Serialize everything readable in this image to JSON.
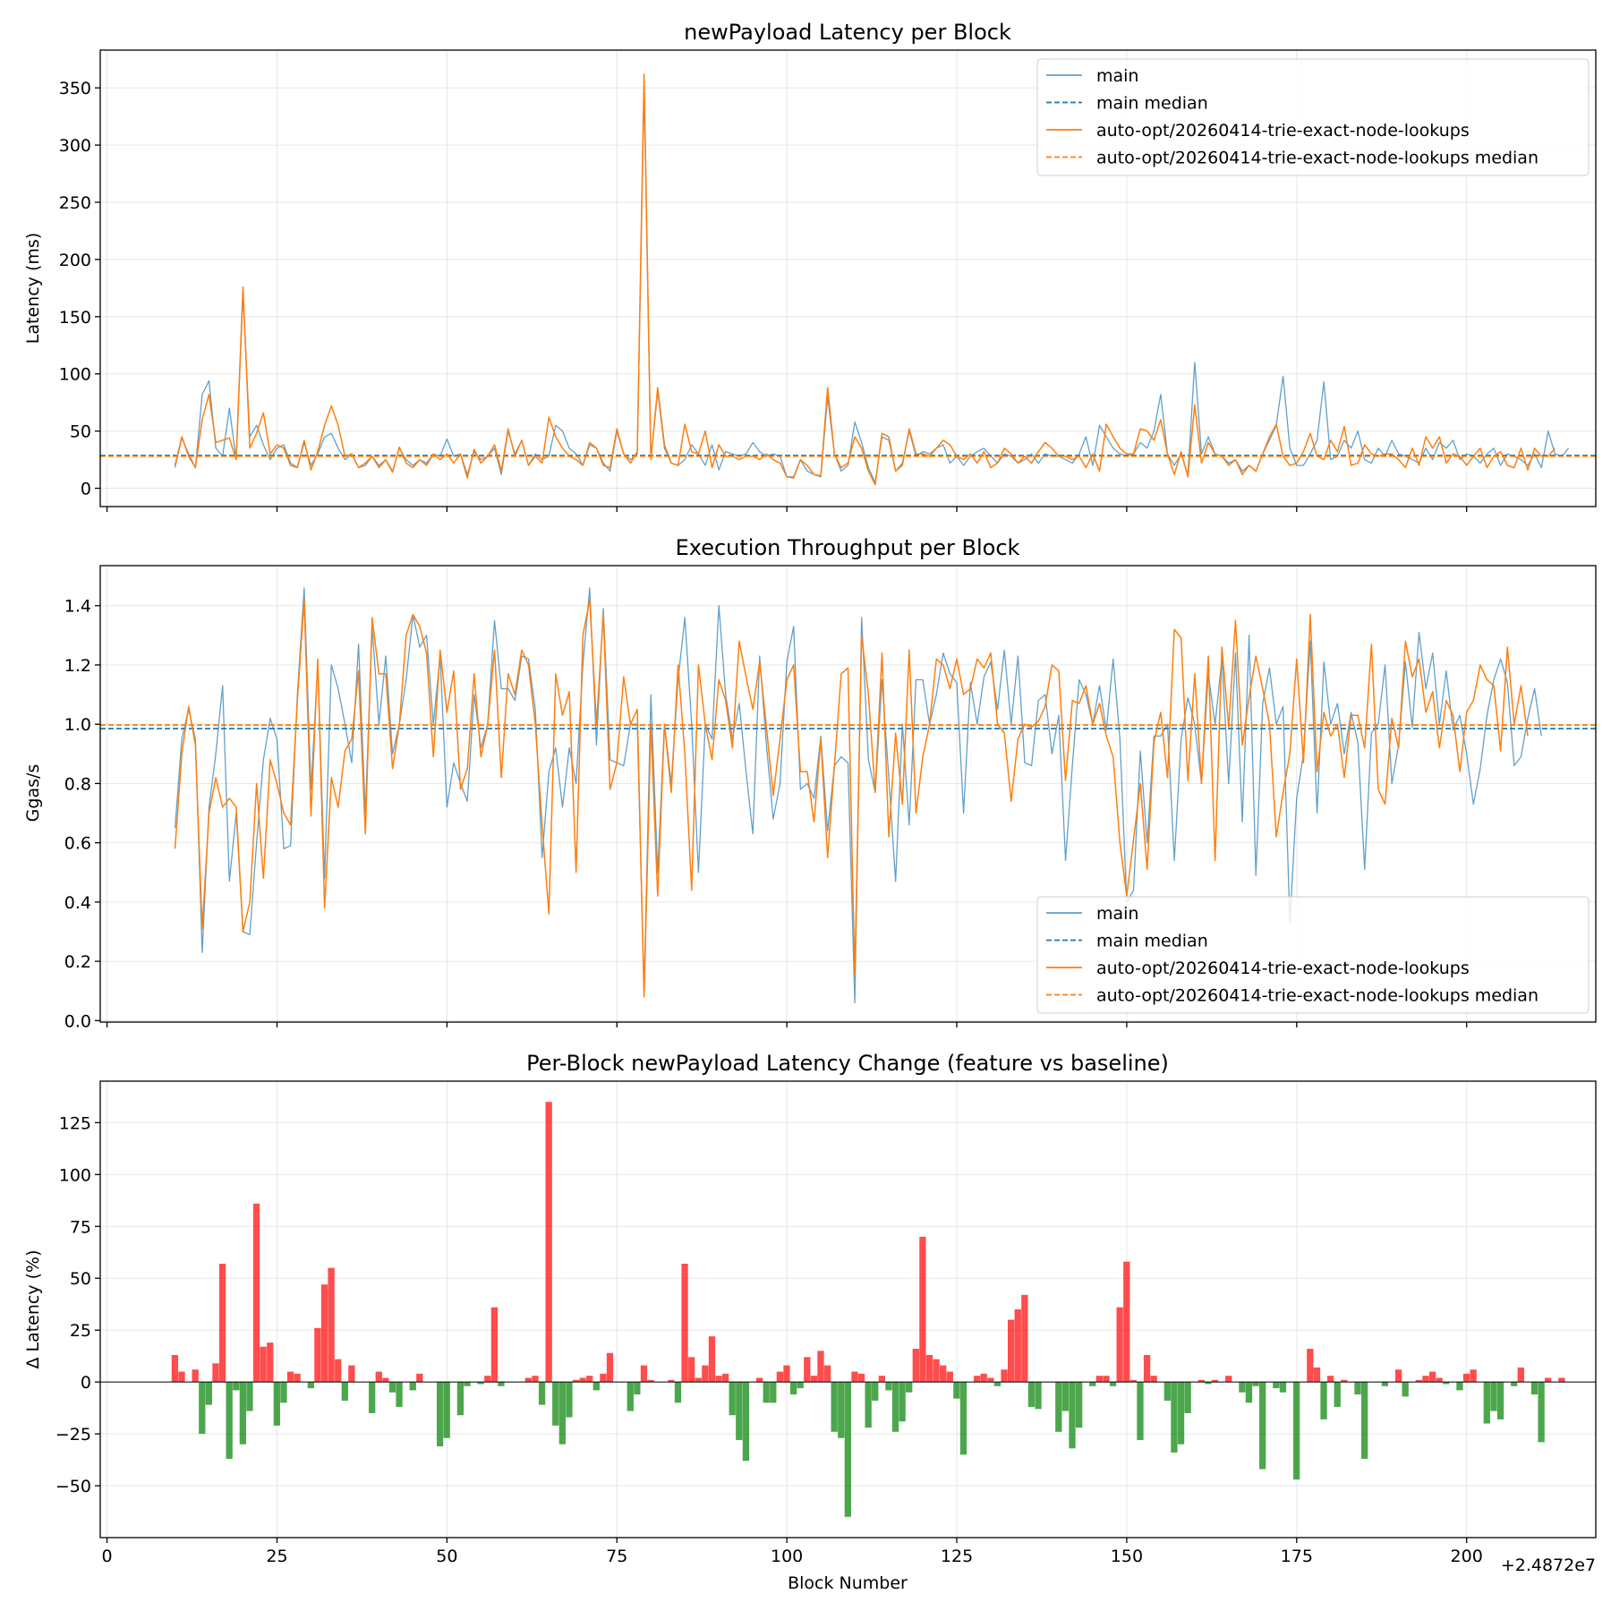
{
  "x_offset_label": "+2.4872e7",
  "colors": {
    "main": "#1f77b4",
    "feature": "#ff7f0e",
    "increase": "#ff0000",
    "decrease": "#008000"
  },
  "chart_data": [
    {
      "type": "line",
      "title": "newPayload Latency per Block",
      "xlabel": "",
      "ylabel": "Latency (ms)",
      "xlim": [
        -1,
        219
      ],
      "ylim": [
        -16,
        383
      ],
      "xticks": [
        0,
        25,
        50,
        75,
        100,
        125,
        150,
        175,
        200
      ],
      "yticks": [
        0,
        50,
        100,
        150,
        200,
        250,
        300,
        350
      ],
      "grid": true,
      "legend": "top-right",
      "x_start": 10,
      "series": [
        {
          "name": "main",
          "style": "solid",
          "color": "#1f77b4",
          "values": [
            18,
            44,
            30,
            18,
            82,
            94,
            35,
            28,
            70,
            25,
            170,
            45,
            55,
            38,
            25,
            35,
            38,
            22,
            18,
            40,
            20,
            30,
            45,
            48,
            35,
            25,
            30,
            18,
            20,
            28,
            20,
            25,
            15,
            35,
            25,
            20,
            25,
            22,
            30,
            28,
            43,
            28,
            30,
            12,
            32,
            25,
            28,
            35,
            12,
            50,
            30,
            42,
            20,
            30,
            25,
            28,
            55,
            50,
            35,
            30,
            20,
            38,
            35,
            22,
            15,
            50,
            30,
            25,
            30,
            350,
            25,
            85,
            35,
            22,
            20,
            25,
            38,
            30,
            20,
            38,
            16,
            32,
            30,
            28,
            30,
            40,
            32,
            28,
            30,
            28,
            10,
            10,
            25,
            15,
            12,
            10,
            80,
            30,
            15,
            20,
            58,
            40,
            18,
            5,
            45,
            42,
            15,
            22,
            50,
            28,
            32,
            30,
            35,
            38,
            22,
            28,
            20,
            28,
            32,
            35,
            28,
            22,
            30,
            28,
            22,
            25,
            30,
            22,
            30,
            28,
            28,
            25,
            22,
            30,
            45,
            20,
            55,
            45,
            35,
            30,
            28,
            30,
            40,
            35,
            50,
            82,
            30,
            20,
            30,
            12,
            110,
            30,
            45,
            30,
            28,
            22,
            25,
            15,
            20,
            15,
            30,
            42,
            55,
            98,
            35,
            20,
            20,
            30,
            42,
            93,
            25,
            28,
            42,
            35,
            50,
            25,
            22,
            35,
            28,
            42,
            30,
            28,
            25,
            22,
            35,
            25,
            40,
            35,
            42,
            25,
            30,
            28,
            22,
            30,
            35,
            20,
            30,
            28,
            25,
            20,
            30,
            18,
            50,
            30,
            28,
            35
          ]
        },
        {
          "name": "main median",
          "style": "dashed",
          "color": "#1f77b4",
          "values": [
            28.7
          ]
        },
        {
          "name": "auto-opt/20260414-trie-exact-node-lookups",
          "style": "solid",
          "color": "#ff7f0e",
          "values": [
            20,
            45,
            28,
            18,
            60,
            82,
            40,
            42,
            44,
            25,
            176,
            35,
            48,
            66,
            30,
            38,
            35,
            20,
            18,
            42,
            16,
            32,
            55,
            72,
            55,
            28,
            30,
            18,
            22,
            28,
            18,
            25,
            14,
            36,
            22,
            18,
            25,
            20,
            30,
            25,
            30,
            22,
            30,
            9,
            34,
            22,
            28,
            38,
            15,
            52,
            28,
            42,
            20,
            28,
            22,
            62,
            45,
            35,
            28,
            25,
            20,
            40,
            35,
            20,
            18,
            52,
            30,
            22,
            32,
            362,
            25,
            88,
            38,
            22,
            20,
            56,
            32,
            30,
            50,
            18,
            38,
            28,
            28,
            25,
            28,
            28,
            25,
            30,
            25,
            22,
            10,
            9,
            25,
            20,
            12,
            11,
            88,
            30,
            18,
            22,
            45,
            35,
            15,
            3,
            48,
            45,
            15,
            20,
            52,
            30,
            30,
            28,
            35,
            42,
            38,
            28,
            25,
            30,
            22,
            32,
            18,
            22,
            35,
            30,
            22,
            28,
            22,
            32,
            40,
            35,
            28,
            28,
            25,
            28,
            18,
            30,
            15,
            56,
            45,
            35,
            30,
            30,
            52,
            50,
            42,
            60,
            30,
            12,
            32,
            10,
            73,
            22,
            40,
            30,
            28,
            20,
            25,
            12,
            20,
            15,
            30,
            45,
            56,
            28,
            20,
            22,
            32,
            48,
            28,
            25,
            42,
            32,
            54,
            20,
            22,
            38,
            30,
            28,
            30,
            30,
            25,
            18,
            35,
            20,
            45,
            35,
            45,
            22,
            30,
            28,
            20,
            28,
            35,
            18,
            28,
            32,
            20,
            18,
            35,
            16,
            35,
            28,
            28,
            35
          ]
        },
        {
          "name": "auto-opt/20260414-trie-exact-node-lookups median",
          "style": "dashed",
          "color": "#ff7f0e",
          "values": [
            28.0
          ]
        }
      ]
    },
    {
      "type": "line",
      "title": "Execution Throughput per Block",
      "xlabel": "",
      "ylabel": "Ggas/s",
      "xlim": [
        -1,
        219
      ],
      "ylim": [
        -0.005,
        1.535
      ],
      "xticks": [
        0,
        25,
        50,
        75,
        100,
        125,
        150,
        175,
        200
      ],
      "yticks": [
        0.0,
        0.2,
        0.4,
        0.6,
        0.8,
        1.0,
        1.2,
        1.4
      ],
      "grid": true,
      "legend": "bottom-right",
      "x_start": 10,
      "series": [
        {
          "name": "main",
          "style": "solid",
          "color": "#1f77b4",
          "values": [
            0.65,
            0.95,
            1.05,
            0.95,
            0.23,
            0.72,
            0.9,
            1.13,
            0.47,
            0.7,
            0.3,
            0.29,
            0.6,
            0.88,
            1.02,
            0.95,
            0.58,
            0.59,
            1.1,
            1.46,
            0.78,
            1.2,
            0.48,
            1.2,
            1.12,
            1.0,
            0.87,
            1.27,
            0.7,
            1.33,
            1.0,
            1.23,
            0.9,
            1.0,
            1.15,
            1.37,
            1.26,
            1.3,
            1.0,
            1.23,
            0.72,
            0.87,
            0.8,
            0.74,
            1.1,
            0.92,
            1.0,
            1.35,
            1.12,
            1.12,
            1.08,
            1.23,
            1.22,
            1.05,
            0.55,
            0.84,
            0.92,
            0.72,
            0.92,
            0.8,
            1.2,
            1.46,
            0.93,
            1.39,
            0.88,
            0.87,
            0.86,
            1.0,
            1.0,
            0.1,
            1.1,
            0.5,
            1.0,
            0.8,
            1.15,
            1.36,
            1.0,
            0.5,
            1.0,
            0.95,
            1.4,
            1.1,
            0.95,
            1.07,
            0.84,
            0.63,
            1.23,
            0.93,
            0.68,
            0.8,
            1.21,
            1.33,
            0.78,
            0.8,
            0.75,
            0.96,
            0.64,
            0.86,
            0.89,
            0.87,
            0.06,
            1.36,
            0.88,
            0.77,
            1.15,
            0.82,
            0.47,
            1.0,
            0.66,
            1.15,
            1.15,
            1.0,
            1.1,
            1.24,
            1.17,
            1.14,
            0.7,
            1.14,
            1.0,
            1.16,
            1.21,
            1.05,
            1.25,
            1.0,
            1.23,
            0.87,
            0.86,
            1.08,
            1.1,
            0.9,
            1.03,
            0.54,
            0.86,
            1.15,
            1.1,
            1.0,
            1.13,
            0.98,
            1.22,
            0.95,
            0.4,
            0.44,
            0.91,
            0.6,
            0.96,
            0.96,
            1.0,
            0.54,
            0.95,
            1.09,
            1.0,
            0.8,
            1.17,
            1.0,
            1.22,
            0.8,
            1.24,
            0.67,
            1.3,
            0.49,
            1.07,
            1.19,
            1.0,
            1.06,
            0.33,
            0.75,
            0.9,
            1.28,
            0.7,
            1.21,
            1.0,
            1.07,
            0.9,
            1.04,
            0.94,
            0.51,
            0.97,
            1.0,
            1.2,
            0.8,
            0.93,
            1.21,
            0.99,
            1.31,
            1.12,
            1.24,
            1.0,
            1.18,
            0.98,
            1.03,
            0.9,
            0.73,
            0.85,
            1.03,
            1.15,
            1.22,
            1.14,
            0.86,
            0.89,
            1.02,
            1.12,
            0.96
          ]
        },
        {
          "name": "main median",
          "style": "dashed",
          "color": "#1f77b4",
          "values": [
            0.985
          ]
        },
        {
          "name": "auto-opt/20260414-trie-exact-node-lookups",
          "style": "solid",
          "color": "#ff7f0e",
          "values": [
            0.58,
            0.9,
            1.06,
            0.93,
            0.31,
            0.7,
            0.82,
            0.72,
            0.75,
            0.72,
            0.3,
            0.4,
            0.8,
            0.48,
            0.88,
            0.8,
            0.7,
            0.66,
            1.08,
            1.42,
            0.69,
            1.22,
            0.38,
            0.82,
            0.72,
            0.91,
            0.95,
            1.18,
            0.63,
            1.36,
            1.17,
            1.17,
            0.85,
            1.0,
            1.3,
            1.37,
            1.33,
            1.24,
            0.89,
            1.25,
            1.04,
            1.18,
            0.78,
            0.85,
            1.17,
            0.89,
            1.0,
            1.25,
            0.82,
            1.17,
            1.1,
            1.25,
            1.2,
            1.0,
            0.66,
            0.36,
            1.17,
            1.03,
            1.11,
            0.5,
            1.3,
            1.42,
            1.0,
            1.37,
            0.78,
            0.87,
            1.16,
            1.0,
            1.05,
            0.08,
            1.0,
            0.42,
            1.0,
            0.77,
            1.2,
            0.9,
            0.44,
            1.2,
            1.0,
            0.88,
            1.15,
            1.08,
            0.92,
            1.28,
            1.16,
            1.05,
            1.21,
            0.99,
            0.76,
            0.95,
            1.15,
            1.2,
            0.84,
            0.84,
            0.67,
            0.95,
            0.55,
            0.86,
            1.17,
            1.19,
            0.15,
            1.3,
            1.1,
            0.77,
            1.24,
            0.62,
            0.97,
            0.73,
            1.25,
            0.7,
            0.89,
            1.0,
            1.22,
            1.2,
            1.12,
            1.22,
            1.1,
            1.12,
            1.22,
            1.19,
            1.24,
            1.0,
            0.97,
            0.74,
            0.95,
            1.0,
            0.99,
            1.01,
            1.06,
            1.2,
            1.18,
            0.81,
            1.08,
            1.07,
            1.13,
            1.0,
            1.07,
            0.96,
            0.89,
            0.6,
            0.42,
            0.61,
            0.8,
            0.51,
            0.94,
            1.04,
            0.82,
            1.32,
            1.29,
            0.81,
            1.17,
            0.8,
            1.23,
            0.54,
            1.26,
            0.99,
            1.35,
            0.93,
            1.09,
            1.23,
            1.12,
            1.0,
            0.62,
            0.77,
            0.9,
            1.22,
            0.87,
            1.37,
            0.84,
            1.04,
            0.96,
            1.0,
            0.82,
            1.03,
            1.03,
            0.92,
            1.27,
            0.78,
            0.73,
            1.02,
            0.92,
            1.28,
            1.16,
            1.22,
            1.04,
            1.11,
            0.92,
            1.08,
            1.03,
            0.84,
            1.04,
            1.08,
            1.2,
            1.15,
            1.13,
            0.91,
            1.26,
            1.0,
            1.13,
            0.96
          ]
        },
        {
          "name": "auto-opt/20260414-trie-exact-node-lookups median",
          "style": "dashed",
          "color": "#ff7f0e",
          "values": [
            0.997
          ]
        }
      ]
    },
    {
      "type": "bar",
      "title": "Per-Block newPayload Latency Change (feature vs baseline)",
      "xlabel": "Block Number",
      "ylabel": "Δ Latency (%)",
      "xlim": [
        -1,
        219
      ],
      "ylim": [
        -75,
        145
      ],
      "xticks": [
        0,
        25,
        50,
        75,
        100,
        125,
        150,
        175,
        200
      ],
      "yticks": [
        -50,
        -25,
        0,
        25,
        50,
        75,
        100,
        125
      ],
      "grid": true,
      "x_start": 10,
      "values": [
        13,
        5,
        0,
        6,
        -25,
        -11,
        9,
        57,
        -37,
        -4,
        -30,
        -14,
        86,
        17,
        19,
        -21,
        -10,
        5,
        4,
        0,
        -3,
        26,
        47,
        55,
        11,
        -9,
        8,
        0,
        0,
        -15,
        5,
        2,
        -5,
        -12,
        0,
        -4,
        4,
        0,
        0,
        -31,
        -27,
        0,
        -16,
        -2,
        0,
        -1,
        3,
        36,
        -2,
        0,
        0,
        0,
        2,
        3,
        -11,
        135,
        -21,
        -30,
        -17,
        1,
        2,
        3,
        -4,
        4,
        14,
        0,
        0,
        -14,
        -6,
        8,
        1,
        0,
        0,
        1,
        -10,
        57,
        12,
        2,
        8,
        22,
        3,
        4,
        -16,
        -28,
        -38,
        0,
        2,
        -10,
        -10,
        5,
        8,
        -6,
        -3,
        12,
        3,
        15,
        8,
        -24,
        -27,
        -65,
        5,
        4,
        -22,
        -9,
        3,
        -4,
        -24,
        -19,
        -5,
        16,
        70,
        13,
        11,
        8,
        5,
        -8,
        -35,
        0,
        3,
        4,
        2,
        -2,
        6,
        30,
        35,
        42,
        -12,
        -13,
        0,
        0,
        -24,
        -14,
        -32,
        -22,
        0,
        -2,
        3,
        3,
        -2,
        36,
        58,
        1,
        -28,
        13,
        3,
        0,
        -9,
        -34,
        -30,
        -15,
        0,
        1,
        -1,
        1,
        0,
        3,
        0,
        -5,
        -10,
        -2,
        -42,
        0,
        -3,
        -5,
        0,
        -47,
        0,
        16,
        7,
        -18,
        3,
        -12,
        1,
        0,
        -6,
        -37,
        0,
        0,
        -2,
        0,
        6,
        -7,
        0,
        1,
        3,
        5,
        2,
        -1,
        0,
        -4,
        4,
        6,
        0,
        -20,
        -14,
        -18,
        0,
        -2,
        7,
        0,
        -6,
        -29,
        2,
        0,
        2
      ]
    }
  ]
}
